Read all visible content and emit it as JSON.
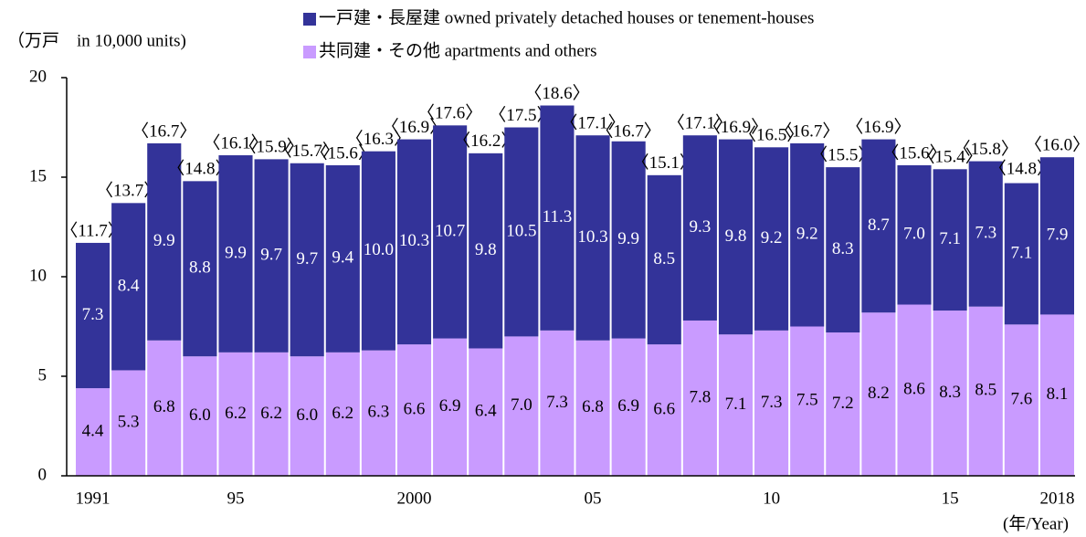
{
  "chart_data": {
    "type": "stacked_bar",
    "y_label": "（万戸　in 10,000 units)",
    "x_label": "(年/Year)",
    "categories": [
      "1991",
      null,
      null,
      null,
      "95",
      null,
      null,
      null,
      null,
      "2000",
      null,
      null,
      null,
      null,
      "05",
      null,
      null,
      null,
      null,
      "10",
      null,
      null,
      null,
      null,
      "15",
      null,
      null,
      "2018"
    ],
    "series": [
      {
        "name": "共同建・その他 apartments and others",
        "color": "#c99bff",
        "label_color": "#000000",
        "values": [
          4.4,
          5.3,
          6.8,
          6.0,
          6.2,
          6.2,
          6.0,
          6.2,
          6.3,
          6.6,
          6.9,
          6.4,
          7.0,
          7.3,
          6.8,
          6.9,
          6.6,
          7.8,
          7.1,
          7.3,
          7.5,
          7.2,
          8.2,
          8.6,
          8.3,
          8.5,
          7.6,
          8.1
        ],
        "value_labels": [
          "4.4",
          "5.3",
          "6.8",
          "6.0",
          "6.2",
          "6.2",
          "6.0",
          "6.2",
          "6.3",
          "6.6",
          "6.9",
          "6.4",
          "7.0",
          "7.3",
          "6.8",
          "6.9",
          "6.6",
          "7.8",
          "7.1",
          "7.3",
          "7.5",
          "7.2",
          "8.2",
          "8.6",
          "8.3",
          "8.5",
          "7.6",
          "8.1"
        ]
      },
      {
        "name": "一戸建・長屋建 owned privately detached houses or tenement-houses",
        "color": "#333399",
        "label_color": "#ffffff",
        "values": [
          7.3,
          8.4,
          9.9,
          8.8,
          9.9,
          9.7,
          9.7,
          9.4,
          10.0,
          10.3,
          10.7,
          9.8,
          10.5,
          11.3,
          10.3,
          9.9,
          8.5,
          9.3,
          9.8,
          9.2,
          9.2,
          8.3,
          8.7,
          7.0,
          7.1,
          7.3,
          7.1,
          7.9
        ],
        "value_labels": [
          "7.3",
          "8.4",
          "9.9",
          "8.8",
          "9.9",
          "9.7",
          "9.7",
          "9.4",
          "10.0",
          "10.3",
          "10.7",
          "9.8",
          "10.5",
          "11.3",
          "10.3",
          "9.9",
          "8.5",
          "9.3",
          "9.8",
          "9.2",
          "9.2",
          "8.3",
          "8.7",
          "7.0",
          "7.1",
          "7.3",
          "7.1",
          "7.9"
        ]
      }
    ],
    "totals": {
      "values": [
        11.7,
        13.7,
        16.7,
        14.8,
        16.1,
        15.9,
        15.7,
        15.6,
        16.3,
        16.9,
        17.6,
        16.2,
        17.5,
        18.6,
        17.1,
        16.7,
        15.1,
        17.1,
        16.9,
        16.5,
        16.7,
        15.5,
        16.9,
        15.6,
        15.4,
        15.8,
        14.8,
        16.0
      ],
      "value_labels": [
        "〈11.7〉",
        "〈13.7〉",
        "〈16.7〉",
        "〈14.8〉",
        "〈16.1〉",
        "〈15.9〉",
        "〈15.7〉",
        "〈15.6〉",
        "〈16.3〉",
        "〈16.9〉",
        "〈17.6〉",
        "〈16.2〉",
        "〈17.5〉",
        "〈18.6〉",
        "〈17.1〉",
        "〈16.7〉",
        "〈15.1〉",
        "〈17.1〉",
        "〈16.9〉",
        "〈16.5〉",
        "〈16.7〉",
        "〈15.5〉",
        "〈16.9〉",
        "〈15.6〉",
        "〈15.4〉",
        "〈15.8〉",
        "〈14.8〉",
        "〈16.0〉"
      ]
    },
    "ylim": [
      0,
      20
    ],
    "yticks": [
      0,
      5,
      10,
      15,
      20
    ]
  }
}
